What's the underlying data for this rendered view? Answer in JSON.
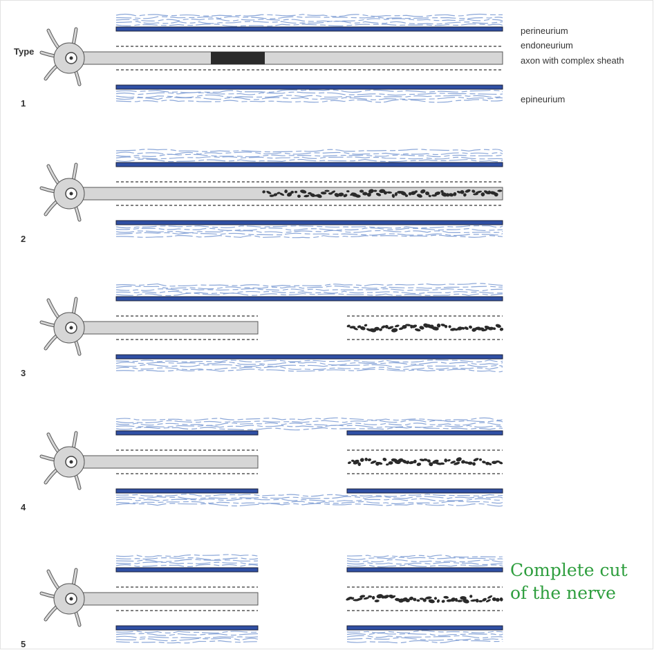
{
  "type_label": "Type",
  "rows": [
    {
      "number": "1"
    },
    {
      "number": "2"
    },
    {
      "number": "3"
    },
    {
      "number": "4"
    },
    {
      "number": "5"
    }
  ],
  "labels": [
    "perineurium",
    "endoneurium",
    "axon with complex sheath",
    "epineurium"
  ],
  "annotation": [
    "Complete cut",
    "of the nerve"
  ]
}
